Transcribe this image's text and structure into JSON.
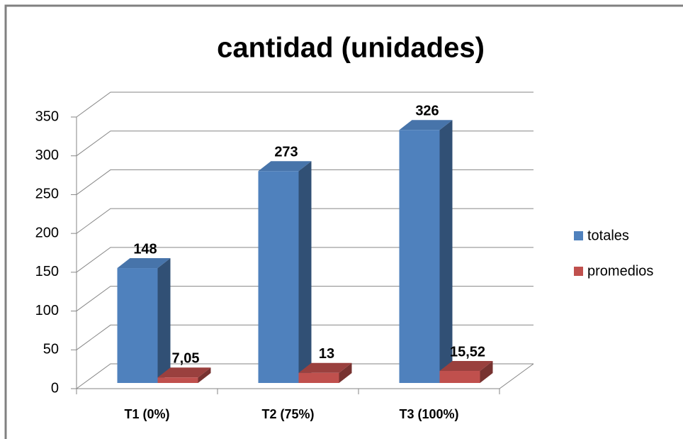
{
  "chart_data": {
    "type": "bar3d",
    "title": "cantidad (unidades)",
    "categories": [
      "T1 (0%)",
      "T2 (75%)",
      "T3 (100%)"
    ],
    "series": [
      {
        "name": "totales",
        "color": "#4f81bd",
        "values": [
          148,
          273,
          326
        ]
      },
      {
        "name": "promedios",
        "color": "#c0504d",
        "values": [
          7.05,
          13,
          15.52
        ],
        "value_labels": [
          "7,05",
          "13",
          "15,52"
        ]
      }
    ],
    "ylim": [
      0,
      350
    ],
    "yticks": [
      0,
      50,
      100,
      150,
      200,
      250,
      300,
      350
    ],
    "grid": true,
    "legend": "right"
  }
}
